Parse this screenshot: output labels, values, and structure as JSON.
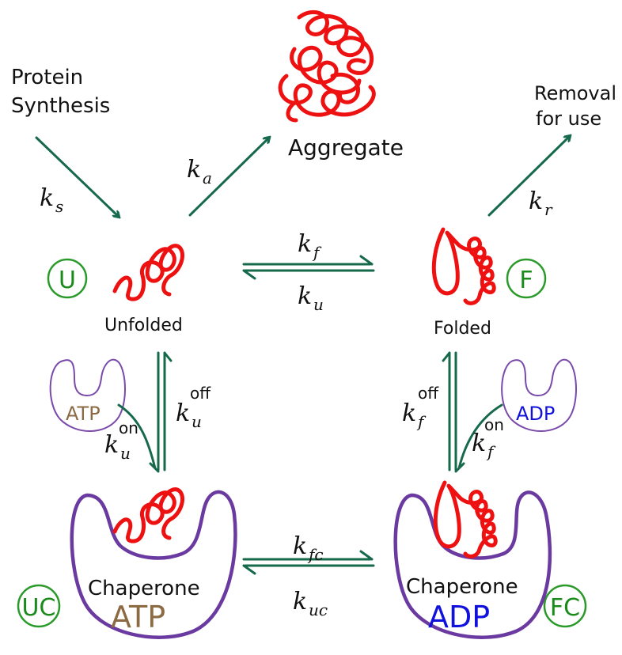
{
  "colors": {
    "arrow": "#16694a",
    "protein": "#ee1111",
    "chaperone": "#6a3aa0",
    "state_circle": "#2a9a2a",
    "atp": "#8b6a44",
    "adp": "#1111dd"
  },
  "labels": {
    "protein_synthesis_1": "Protein",
    "protein_synthesis_2": "Synthesis",
    "aggregate": "Aggregate",
    "removal_1": "Removal",
    "removal_2": "for use",
    "unfolded": "Unfolded",
    "folded": "Folded",
    "chaperone_left": "Chaperone",
    "chaperone_right": "Chaperone",
    "atp_small": "ATP",
    "adp_small": "ADP",
    "atp_big": "ATP",
    "adp_big": "ADP"
  },
  "states": {
    "u": "U",
    "f": "F",
    "uc": "UC",
    "fc": "FC"
  },
  "rates": {
    "k": "k",
    "ks_sub": "s",
    "ka_sub": "a",
    "kr_sub": "r",
    "kf_sub": "f",
    "ku_sub": "u",
    "kfc_sub": "fc",
    "kuc_sub": "uc",
    "on": "on",
    "off": "off"
  }
}
